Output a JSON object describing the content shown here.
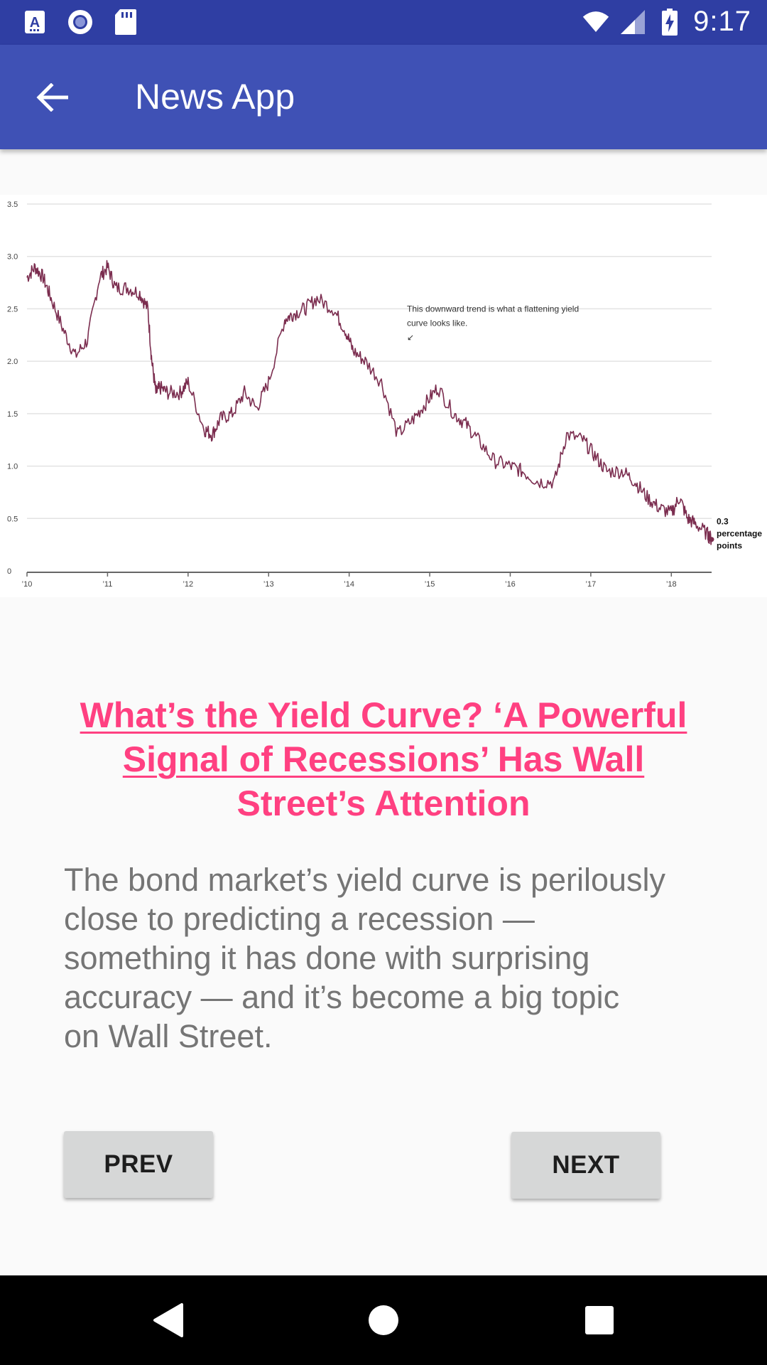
{
  "status_bar": {
    "time": "9:17",
    "left_icons": [
      "text-input-icon",
      "radio-record-icon",
      "sd-card-icon"
    ],
    "right_icons": [
      "wifi-icon",
      "cell-signal-icon",
      "battery-charging-icon"
    ],
    "background": "#2f3ea3"
  },
  "app_bar": {
    "title": "News App",
    "background": "#3f51b5"
  },
  "article": {
    "headline_lines": [
      "What’s the Yield Curve? ‘A Powerful",
      "Signal of Recessions’ Has Wall",
      "Street’s Attention"
    ],
    "body": "The bond market’s yield curve is perilously\nclose to predicting a recession —\nsomething it has done with surprising\naccuracy — and it’s become a big topic\non Wall Street.",
    "headline_color": "#ff4081",
    "body_color": "#757575"
  },
  "buttons": {
    "prev": "PREV",
    "next": "NEXT"
  },
  "chart_data": {
    "type": "line",
    "title": "",
    "xlabel": "",
    "ylabel": "",
    "x_ticks": [
      "’10",
      "’11",
      "’12",
      "’13",
      "’14",
      "’15",
      "’16",
      "’17",
      "’18"
    ],
    "y_ticks": [
      "0",
      "0.5",
      "1.0",
      "1.5",
      "2.0",
      "2.5",
      "3.0",
      "3.5"
    ],
    "ylim": [
      0,
      3.5
    ],
    "xlim": [
      2010.0,
      2018.5
    ],
    "grid": true,
    "line_color": "#7b2d4f",
    "annotation": [
      "This downward trend is what a flattening yield",
      "curve looks like.",
      "↙"
    ],
    "end_label": [
      "0.3",
      "percentage",
      "points"
    ],
    "series": [
      {
        "x": [
          2010.0,
          2010.1,
          2010.2,
          2010.3,
          2010.45,
          2010.6,
          2010.75,
          2010.9,
          2011.0,
          2011.1,
          2011.25,
          2011.4,
          2011.5,
          2011.55,
          2011.6,
          2011.65,
          2011.75,
          2011.9,
          2012.0,
          2012.2,
          2012.3,
          2012.4,
          2012.55,
          2012.7,
          2012.85,
          2013.0,
          2013.2,
          2013.3,
          2013.45,
          2013.6,
          2013.8,
          2013.95,
          2014.05,
          2014.2,
          2014.4,
          2014.6,
          2014.8,
          2014.95,
          2015.1,
          2015.3,
          2015.45,
          2015.6,
          2015.8,
          2016.0,
          2016.15,
          2016.35,
          2016.55,
          2016.7,
          2016.9,
          2017.05,
          2017.2,
          2017.4,
          2017.55,
          2017.7,
          2017.85,
          2018.0,
          2018.1,
          2018.2,
          2018.3,
          2018.45,
          2018.5
        ],
        "y": [
          2.8,
          2.9,
          2.8,
          2.6,
          2.3,
          2.05,
          2.2,
          2.8,
          2.9,
          2.7,
          2.7,
          2.65,
          2.5,
          2.0,
          1.7,
          1.75,
          1.7,
          1.7,
          1.8,
          1.35,
          1.3,
          1.45,
          1.5,
          1.7,
          1.55,
          1.8,
          2.4,
          2.45,
          2.5,
          2.6,
          2.5,
          2.3,
          2.1,
          2.0,
          1.8,
          1.3,
          1.45,
          1.6,
          1.75,
          1.5,
          1.4,
          1.25,
          1.05,
          1.0,
          0.95,
          0.85,
          0.85,
          1.3,
          1.25,
          1.1,
          0.95,
          0.95,
          0.85,
          0.7,
          0.6,
          0.55,
          0.7,
          0.5,
          0.45,
          0.35,
          0.3
        ]
      }
    ]
  }
}
